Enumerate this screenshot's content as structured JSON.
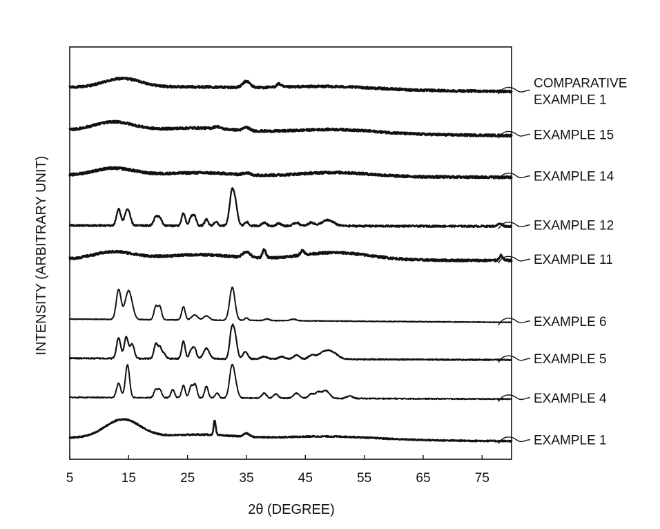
{
  "chart_data": {
    "type": "line",
    "title": "",
    "xlabel": "2θ (DEGREE)",
    "ylabel": "INTENSITY (ARBITRARY UNIT)",
    "xlim": [
      5,
      80
    ],
    "xticks": [
      5,
      15,
      25,
      35,
      45,
      55,
      65,
      75
    ],
    "yticks": [],
    "grid": false,
    "legend": "labels at right end of each trace",
    "series": [
      {
        "name": [
          "COMPARATIVE",
          "EXAMPLE 1"
        ],
        "baseline": 0.902,
        "noise": 0.0025,
        "lw": 3.0,
        "slope": -0.01,
        "broad": [
          [
            14,
            3.2,
            0.022
          ],
          [
            27,
            7,
            0.004
          ],
          [
            49,
            8,
            0.008
          ]
        ],
        "peaks": [
          [
            35,
            0.6,
            0.015
          ],
          [
            40.5,
            0.4,
            0.008
          ]
        ]
      },
      {
        "name": [
          "EXAMPLE 15"
        ],
        "baseline": 0.797,
        "noise": 0.0025,
        "lw": 3.0,
        "slope": -0.012,
        "broad": [
          [
            12.5,
            3.5,
            0.022
          ],
          [
            27,
            6,
            0.01
          ],
          [
            50,
            7,
            0.01
          ]
        ],
        "peaks": [
          [
            35,
            0.5,
            0.008
          ],
          [
            30,
            0.5,
            0.005
          ]
        ]
      },
      {
        "name": [
          "EXAMPLE 14"
        ],
        "baseline": 0.688,
        "noise": 0.0025,
        "lw": 3.2,
        "slope": -0.004,
        "broad": [
          [
            12.5,
            3.5,
            0.018
          ],
          [
            27,
            6,
            0.008
          ],
          [
            50,
            6,
            0.01
          ]
        ],
        "peaks": [
          [
            35,
            0.5,
            0.005
          ]
        ]
      },
      {
        "name": [
          "EXAMPLE 12"
        ],
        "baseline": 0.567,
        "noise": 0.0022,
        "lw": 2.4,
        "slope": -0.002,
        "broad": [],
        "peaks": [
          [
            13.3,
            0.35,
            0.04
          ],
          [
            14.8,
            0.45,
            0.04
          ],
          [
            19.6,
            0.35,
            0.02
          ],
          [
            20.3,
            0.35,
            0.018
          ],
          [
            24.3,
            0.3,
            0.03
          ],
          [
            25.6,
            0.3,
            0.02
          ],
          [
            26.2,
            0.3,
            0.022
          ],
          [
            28.2,
            0.3,
            0.015
          ],
          [
            29.8,
            0.3,
            0.01
          ],
          [
            32.5,
            0.4,
            0.072
          ],
          [
            33.1,
            0.4,
            0.045
          ],
          [
            35,
            0.3,
            0.01
          ],
          [
            38,
            0.4,
            0.008
          ],
          [
            40.5,
            0.4,
            0.006
          ],
          [
            43.5,
            0.5,
            0.008
          ],
          [
            46,
            0.5,
            0.008
          ],
          [
            48.8,
            1.0,
            0.014
          ],
          [
            78,
            0.4,
            0.006
          ]
        ]
      },
      {
        "name": [
          "EXAMPLE 11"
        ],
        "baseline": 0.485,
        "noise": 0.0025,
        "lw": 3.0,
        "slope": -0.003,
        "broad": [
          [
            12.5,
            3.5,
            0.018
          ],
          [
            27,
            6,
            0.012
          ],
          [
            50,
            6,
            0.018
          ]
        ],
        "peaks": [
          [
            35,
            0.6,
            0.014
          ],
          [
            38,
            0.3,
            0.02
          ],
          [
            44.5,
            0.3,
            0.012
          ],
          [
            78.2,
            0.3,
            0.012
          ]
        ]
      },
      {
        "name": [
          "EXAMPLE 6"
        ],
        "baseline": 0.34,
        "noise": 0.0008,
        "lw": 2.0,
        "slope": -0.008,
        "broad": [],
        "peaks": [
          [
            13.3,
            0.4,
            0.072
          ],
          [
            15.0,
            0.6,
            0.07
          ],
          [
            19.6,
            0.3,
            0.032
          ],
          [
            20.3,
            0.3,
            0.032
          ],
          [
            24.3,
            0.3,
            0.032
          ],
          [
            26.2,
            0.5,
            0.012
          ],
          [
            28.2,
            0.5,
            0.01
          ],
          [
            32.6,
            0.45,
            0.08
          ],
          [
            35,
            0.3,
            0.006
          ],
          [
            38.5,
            0.4,
            0.004
          ],
          [
            43,
            0.5,
            0.004
          ]
        ]
      },
      {
        "name": [
          "EXAMPLE 5"
        ],
        "baseline": 0.245,
        "noise": 0.0014,
        "lw": 2.2,
        "slope": -0.004,
        "broad": [],
        "peaks": [
          [
            13.3,
            0.35,
            0.05
          ],
          [
            14.6,
            0.35,
            0.052
          ],
          [
            15.6,
            0.35,
            0.035
          ],
          [
            19.6,
            0.3,
            0.035
          ],
          [
            20.3,
            0.3,
            0.028
          ],
          [
            21,
            0.3,
            0.012
          ],
          [
            24.3,
            0.3,
            0.042
          ],
          [
            25.6,
            0.3,
            0.02
          ],
          [
            26.2,
            0.3,
            0.025
          ],
          [
            28.2,
            0.5,
            0.025
          ],
          [
            32.5,
            0.35,
            0.068
          ],
          [
            33.1,
            0.35,
            0.048
          ],
          [
            34.8,
            0.4,
            0.018
          ],
          [
            38,
            0.5,
            0.006
          ],
          [
            41,
            0.5,
            0.006
          ],
          [
            43.5,
            0.5,
            0.01
          ],
          [
            46,
            0.5,
            0.008
          ],
          [
            48.5,
            1.2,
            0.02
          ],
          [
            50,
            0.8,
            0.006
          ]
        ]
      },
      {
        "name": [
          "EXAMPLE 4"
        ],
        "baseline": 0.15,
        "noise": 0.0012,
        "lw": 2.0,
        "slope": -0.004,
        "broad": [],
        "peaks": [
          [
            13.3,
            0.35,
            0.035
          ],
          [
            14.8,
            0.35,
            0.08
          ],
          [
            19.6,
            0.3,
            0.02
          ],
          [
            20.3,
            0.3,
            0.02
          ],
          [
            22.5,
            0.3,
            0.02
          ],
          [
            24.3,
            0.3,
            0.03
          ],
          [
            25.6,
            0.3,
            0.028
          ],
          [
            26.3,
            0.3,
            0.032
          ],
          [
            28.2,
            0.3,
            0.028
          ],
          [
            30,
            0.3,
            0.012
          ],
          [
            32.5,
            0.4,
            0.07
          ],
          [
            33.1,
            0.4,
            0.03
          ],
          [
            38,
            0.4,
            0.012
          ],
          [
            40,
            0.4,
            0.01
          ],
          [
            43.5,
            0.5,
            0.012
          ],
          [
            46,
            0.5,
            0.01
          ],
          [
            47.2,
            0.5,
            0.014
          ],
          [
            48.5,
            0.6,
            0.018
          ],
          [
            52.5,
            0.5,
            0.006
          ]
        ]
      },
      {
        "name": [
          "EXAMPLE 1"
        ],
        "baseline": 0.052,
        "noise": 0.0015,
        "lw": 2.6,
        "slope": -0.008,
        "broad": [
          [
            14,
            3.0,
            0.045
          ],
          [
            27,
            6,
            0.01
          ],
          [
            49,
            8,
            0.008
          ]
        ],
        "peaks": [
          [
            29.6,
            0.18,
            0.035
          ],
          [
            35,
            0.5,
            0.008
          ]
        ]
      }
    ]
  }
}
